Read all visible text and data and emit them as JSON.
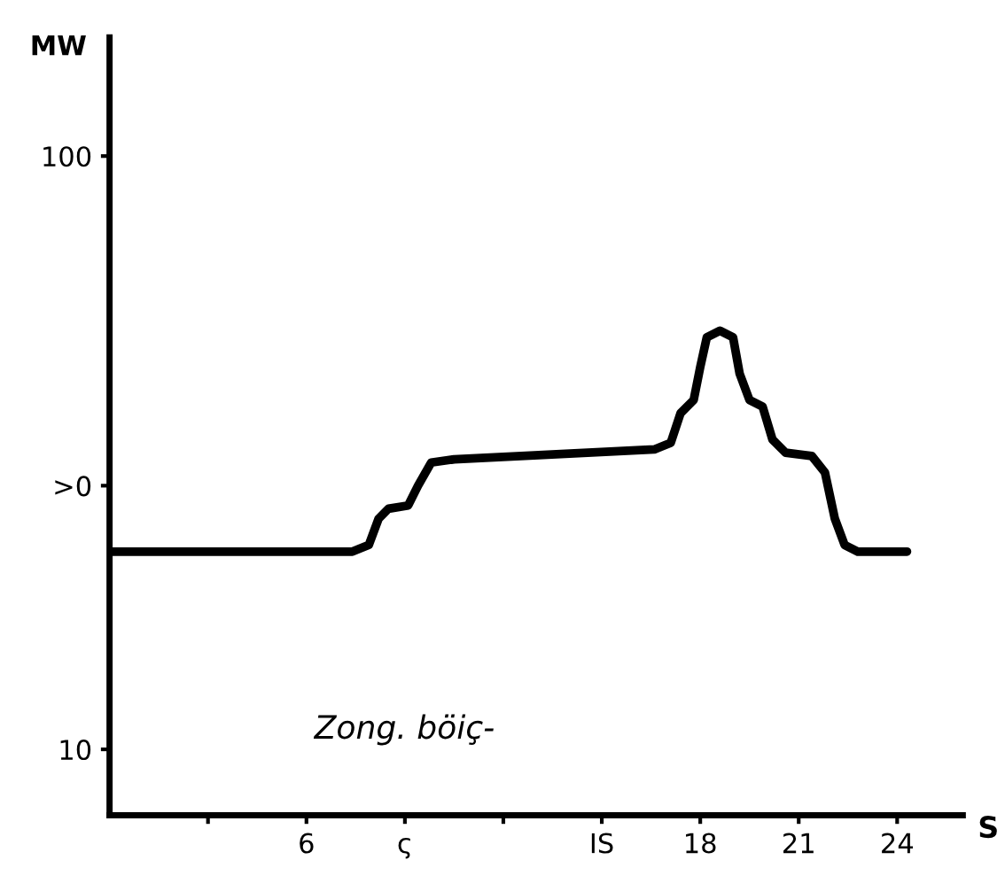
{
  "chart_data": {
    "type": "line",
    "xlabel": "S",
    "ylabel": "MW",
    "x": [
      0,
      7.4,
      7.9,
      8.2,
      8.5,
      9.1,
      9.4,
      9.8,
      10.5,
      16.6,
      17.1,
      17.4,
      17.8,
      18.0,
      18.2,
      18.6,
      19.0,
      19.2,
      19.5,
      19.9,
      20.2,
      20.6,
      21.4,
      21.8,
      22.1,
      22.4,
      22.8,
      24.3
    ],
    "series": [
      {
        "color": "#000000",
        "values": [
          40,
          40,
          41,
          45,
          46.5,
          47,
          50,
          53.5,
          54,
          55.5,
          56.5,
          61,
          63,
          68,
          72.5,
          73.5,
          72.5,
          67,
          63,
          62,
          57,
          55,
          54.5,
          52,
          45,
          41,
          40,
          40
        ]
      }
    ],
    "xlim": [
      0,
      26
    ],
    "ylim": [
      0,
      118
    ],
    "xticks": [
      {
        "value": 3,
        "label": null
      },
      6,
      {
        "value": 9,
        "label": "ς"
      },
      {
        "value": 12,
        "label": null
      },
      {
        "value": 15,
        "label": "IS"
      },
      18,
      21,
      24
    ],
    "yticks": [
      10,
      {
        "value": 50,
        "label": ">0"
      },
      100
    ],
    "annotations": [
      "Zong. böiç-"
    ],
    "grid": false,
    "legend": false,
    "marker": "none",
    "line_style": "solid"
  }
}
